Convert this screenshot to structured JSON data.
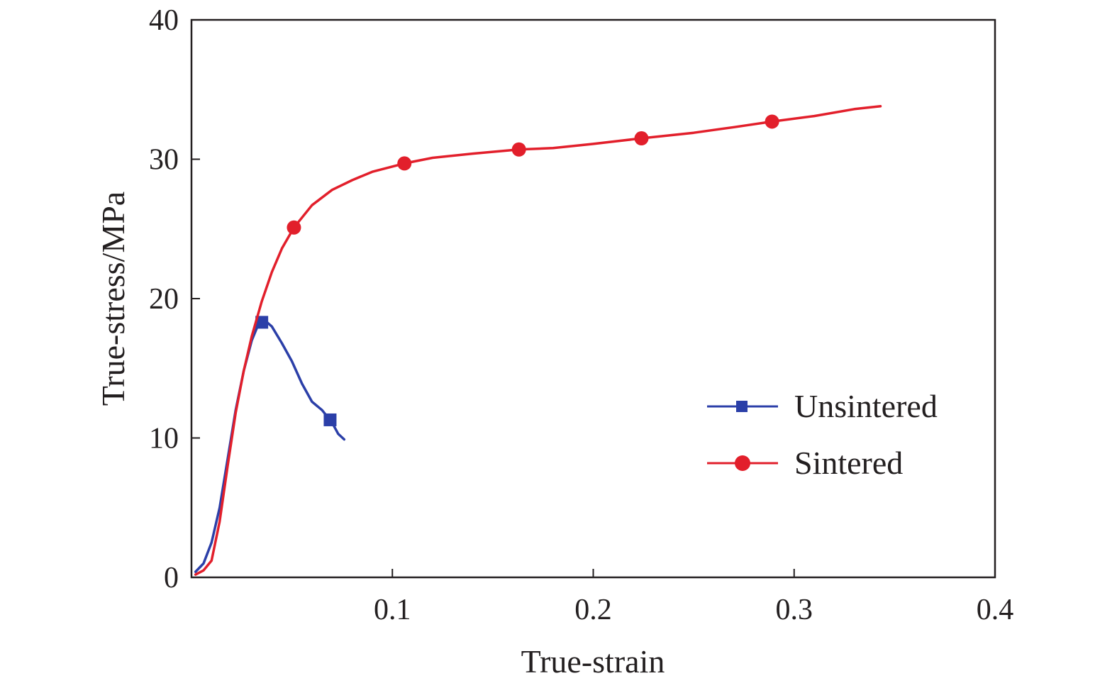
{
  "chart_data": {
    "type": "line",
    "title": "",
    "xlabel": "True-strain",
    "ylabel": "True-stress/MPa",
    "xlim": [
      0,
      0.4
    ],
    "ylim": [
      0,
      40
    ],
    "x_ticks": [
      0.1,
      0.2,
      0.3,
      0.4
    ],
    "x_tick_labels": [
      "0.1",
      "0.2",
      "0.3",
      "0.4"
    ],
    "y_ticks": [
      0,
      10,
      20,
      30,
      40
    ],
    "y_tick_labels": [
      "0",
      "10",
      "20",
      "30",
      "40"
    ],
    "grid": false,
    "legend_position": "center-right",
    "series": [
      {
        "name": "Unsintered",
        "color": "#2b3fa8",
        "marker": "square",
        "points": [
          [
            0.002,
            0.4
          ],
          [
            0.006,
            1.0
          ],
          [
            0.01,
            2.5
          ],
          [
            0.014,
            5.0
          ],
          [
            0.018,
            8.5
          ],
          [
            0.022,
            12.0
          ],
          [
            0.026,
            14.8
          ],
          [
            0.03,
            17.0
          ],
          [
            0.034,
            18.4
          ],
          [
            0.036,
            18.5
          ],
          [
            0.04,
            18.0
          ],
          [
            0.045,
            16.8
          ],
          [
            0.05,
            15.5
          ],
          [
            0.055,
            13.9
          ],
          [
            0.06,
            12.6
          ],
          [
            0.065,
            12.0
          ],
          [
            0.07,
            11.1
          ],
          [
            0.073,
            10.3
          ],
          [
            0.076,
            9.9
          ]
        ],
        "markers": [
          [
            0.035,
            18.3
          ],
          [
            0.069,
            11.3
          ]
        ]
      },
      {
        "name": "Sintered",
        "color": "#e21f2b",
        "marker": "circle",
        "points": [
          [
            0.002,
            0.2
          ],
          [
            0.006,
            0.5
          ],
          [
            0.01,
            1.2
          ],
          [
            0.014,
            4.0
          ],
          [
            0.018,
            8.0
          ],
          [
            0.022,
            11.8
          ],
          [
            0.026,
            14.8
          ],
          [
            0.03,
            17.3
          ],
          [
            0.035,
            19.8
          ],
          [
            0.04,
            21.9
          ],
          [
            0.045,
            23.6
          ],
          [
            0.051,
            25.1
          ],
          [
            0.06,
            26.7
          ],
          [
            0.07,
            27.8
          ],
          [
            0.08,
            28.5
          ],
          [
            0.09,
            29.1
          ],
          [
            0.106,
            29.7
          ],
          [
            0.12,
            30.1
          ],
          [
            0.14,
            30.4
          ],
          [
            0.163,
            30.7
          ],
          [
            0.18,
            30.8
          ],
          [
            0.2,
            31.1
          ],
          [
            0.224,
            31.5
          ],
          [
            0.25,
            31.9
          ],
          [
            0.27,
            32.3
          ],
          [
            0.289,
            32.7
          ],
          [
            0.31,
            33.1
          ],
          [
            0.33,
            33.6
          ],
          [
            0.343,
            33.8
          ]
        ],
        "markers": [
          [
            0.051,
            25.1
          ],
          [
            0.106,
            29.7
          ],
          [
            0.163,
            30.7
          ],
          [
            0.224,
            31.5
          ],
          [
            0.289,
            32.7
          ]
        ]
      }
    ]
  }
}
